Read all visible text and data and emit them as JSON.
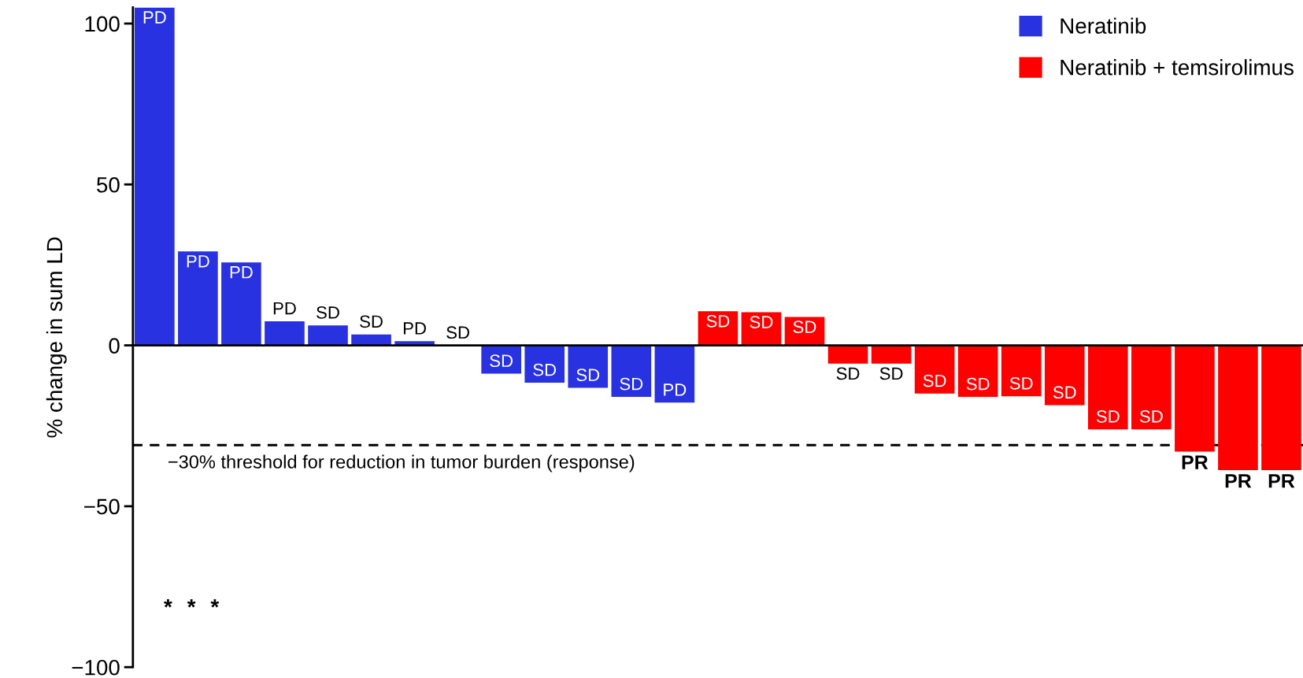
{
  "chart_data": {
    "type": "bar",
    "ylabel": "% change in sum LD",
    "categories": [
      null,
      null,
      null,
      null,
      null,
      null,
      null,
      null,
      null,
      null,
      null,
      null,
      null,
      null,
      null,
      null,
      null,
      null,
      null,
      null,
      null,
      null,
      null,
      null,
      null,
      null,
      null
    ],
    "series": [
      {
        "name": "Neratinib",
        "color": "#2832e0",
        "values": [
          105,
          29.2,
          25.8,
          7.5,
          6.2,
          3.4,
          1.3,
          0,
          -8.8,
          -11.6,
          -13.2,
          -16,
          -17.8,
          null,
          null,
          null,
          null,
          null,
          null,
          null,
          null,
          null,
          null,
          null,
          null,
          null,
          null
        ],
        "value_labels": [
          "PD",
          "PD",
          "PD",
          "PD",
          "SD",
          "SD",
          "PD",
          "SD",
          "SD",
          "SD",
          "SD",
          "SD",
          "PD",
          null,
          null,
          null,
          null,
          null,
          null,
          null,
          null,
          null,
          null,
          null,
          null,
          null,
          null
        ]
      },
      {
        "name": "Neratinib + temsirolimus",
        "color": "#fe0000",
        "values": [
          null,
          null,
          null,
          null,
          null,
          null,
          null,
          null,
          null,
          null,
          null,
          null,
          null,
          10.6,
          10.3,
          8.8,
          -5.7,
          -5.7,
          -15,
          -16,
          -15.8,
          -18.6,
          -26.1,
          -26.1,
          -33,
          -38.8,
          -38.8
        ],
        "value_labels": [
          null,
          null,
          null,
          null,
          null,
          null,
          null,
          null,
          null,
          null,
          null,
          null,
          null,
          "SD",
          "SD",
          "SD",
          "SD",
          "SD",
          "SD",
          "SD",
          "SD",
          "SD",
          "SD",
          "SD",
          "PR",
          "PR",
          "PR"
        ]
      }
    ],
    "ylim": [
      -100,
      105
    ],
    "yticks": [
      100,
      50,
      0,
      {
        "value": -50,
        "label": "−50"
      },
      {
        "value": -100,
        "label": "−100"
      }
    ],
    "ref_lines": [
      {
        "axis": "y",
        "value": -31,
        "label": "−30% threshold for reduction in tumor burden (response)",
        "color": "#000000",
        "line_style": "dashed"
      }
    ],
    "annotations": [
      "*",
      "*",
      "*"
    ],
    "legend": "top right"
  }
}
